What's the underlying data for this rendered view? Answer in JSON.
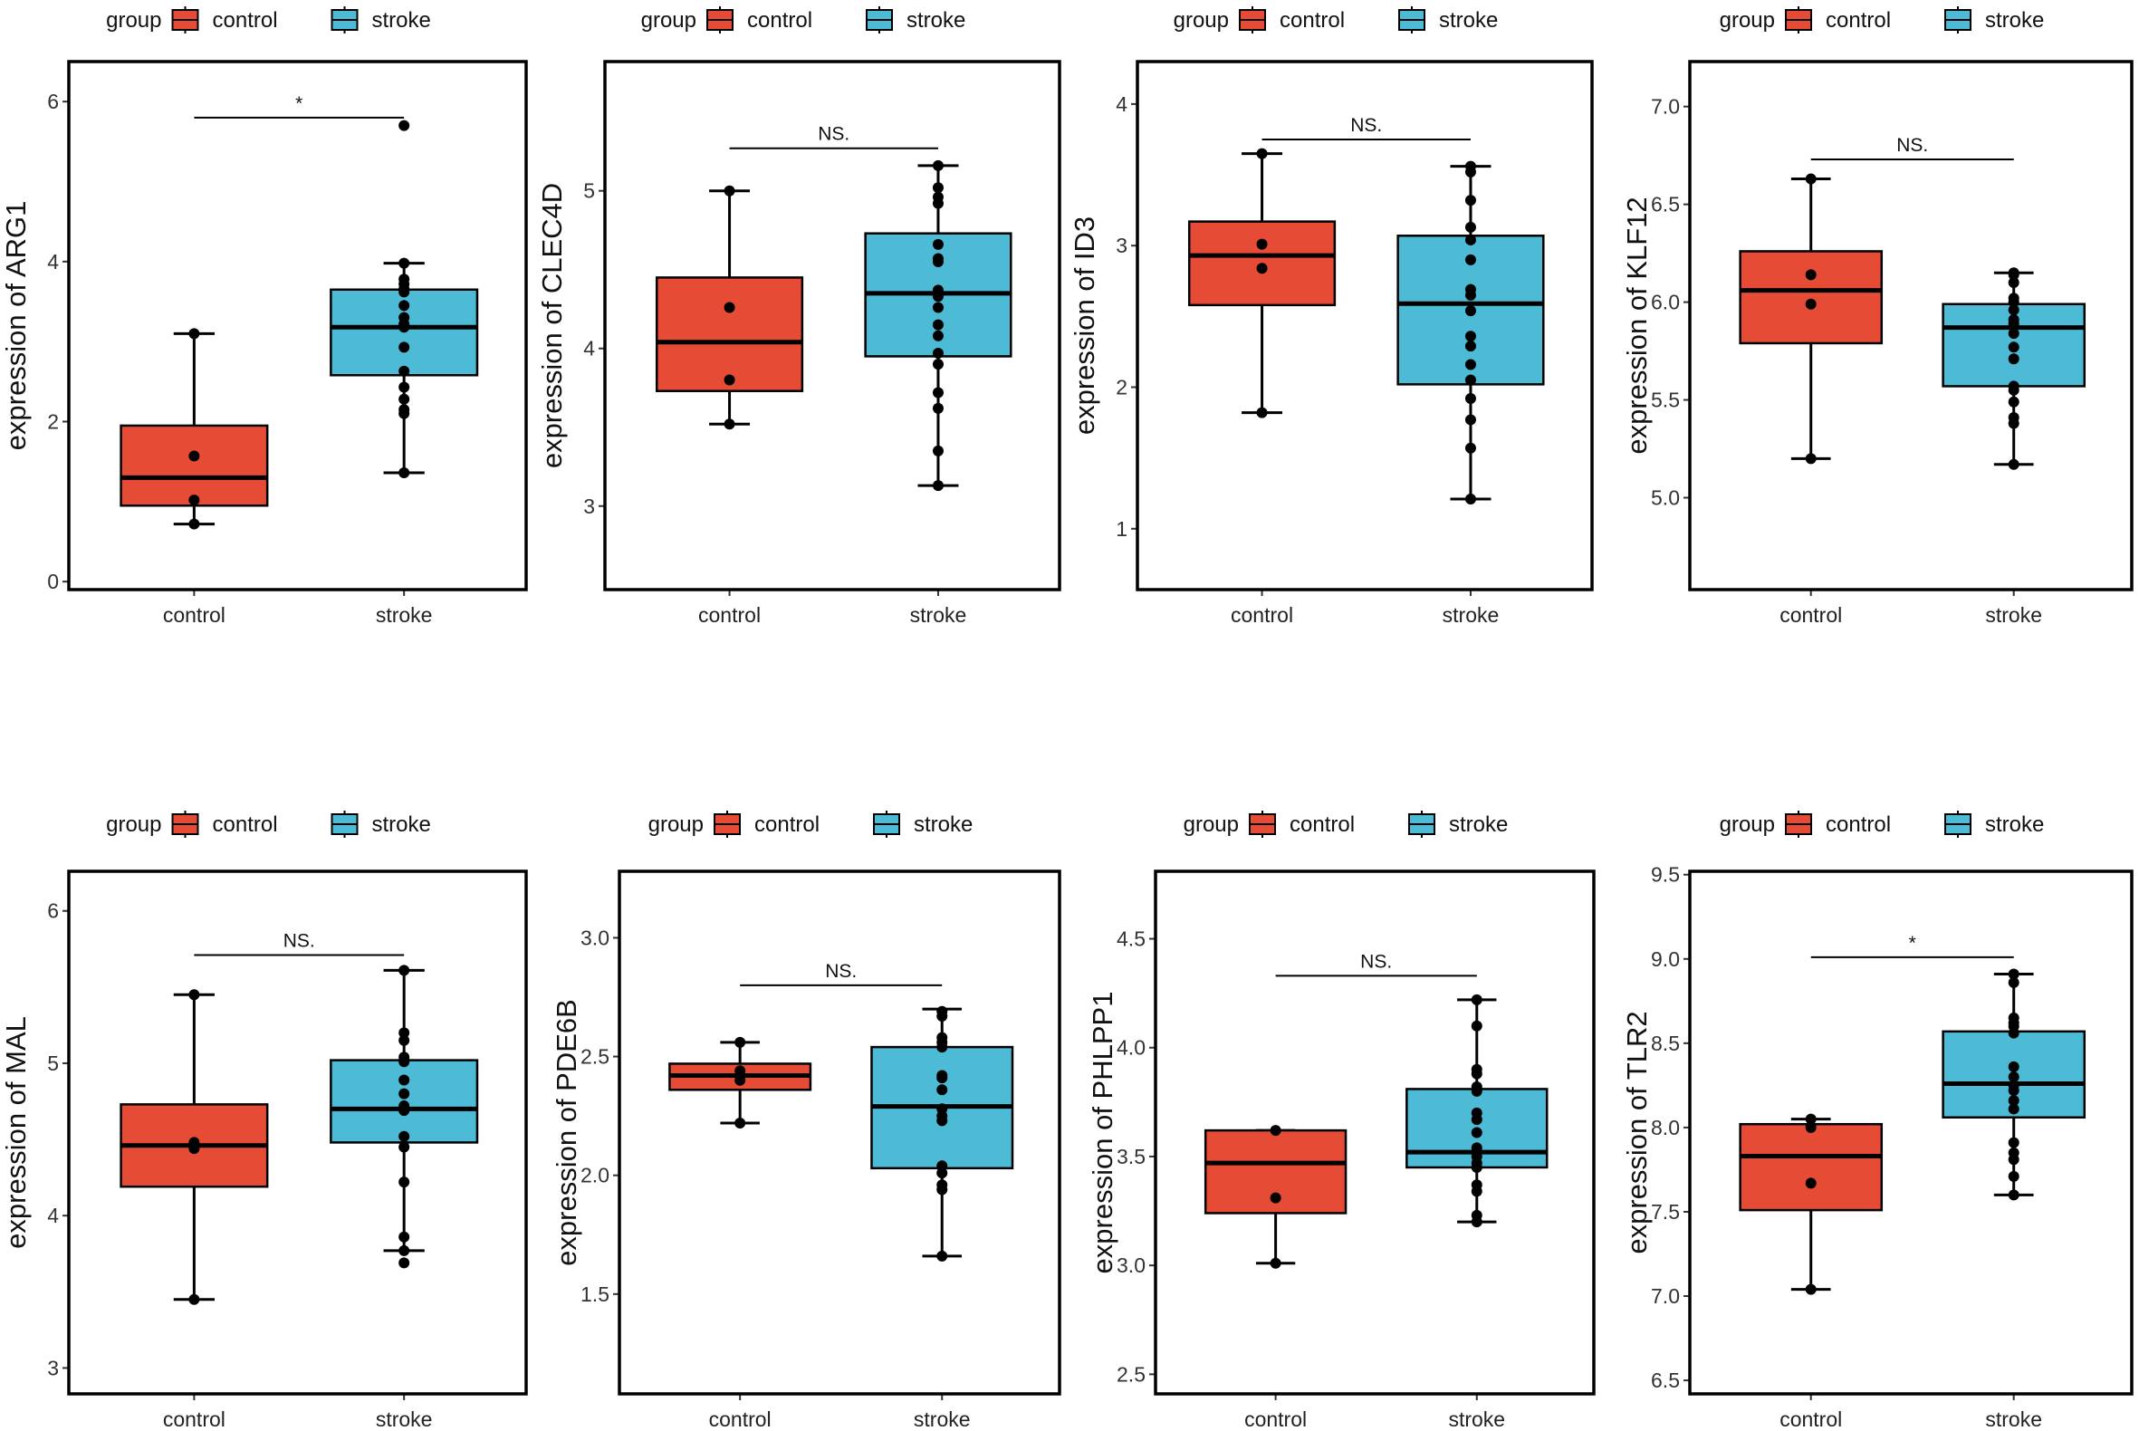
{
  "colors": {
    "control": "#E64B35",
    "stroke": "#4DBBD5",
    "outline": "#000000"
  },
  "legend": {
    "title": "group",
    "items": [
      "control",
      "stroke"
    ]
  },
  "chart_data": [
    {
      "type": "box",
      "gene": "ARG1",
      "ylabel": "expression of ARG1",
      "categories": [
        "control",
        "stroke"
      ],
      "ylim": [
        -0.1,
        6.5
      ],
      "yticks": [
        0,
        2,
        4,
        6
      ],
      "ytick_labels": [
        "0",
        "2",
        "4",
        "6"
      ],
      "significance": {
        "label": "*",
        "y": 5.8
      },
      "series": [
        {
          "name": "control",
          "min": 0.72,
          "q1": 0.95,
          "median": 1.3,
          "q3": 1.95,
          "max": 3.1,
          "outliers": [],
          "points": [
            0.72,
            1.02,
            1.57,
            3.1
          ]
        },
        {
          "name": "stroke",
          "min": 1.36,
          "q1": 2.58,
          "median": 3.18,
          "q3": 3.65,
          "max": 3.98,
          "outliers": [
            5.7
          ],
          "points": [
            1.36,
            2.1,
            2.15,
            2.28,
            2.43,
            2.63,
            2.93,
            3.18,
            3.22,
            3.3,
            3.45,
            3.62,
            3.66,
            3.72,
            3.78,
            3.98,
            5.7
          ]
        }
      ]
    },
    {
      "type": "box",
      "gene": "CLEC4D",
      "ylabel": "expression of CLEC4D",
      "categories": [
        "control",
        "stroke"
      ],
      "ylim": [
        2.47,
        5.82
      ],
      "yticks": [
        3,
        4,
        5
      ],
      "ytick_labels": [
        "3",
        "4",
        "5"
      ],
      "significance": {
        "label": "NS.",
        "y": 5.27
      },
      "series": [
        {
          "name": "control",
          "min": 3.52,
          "q1": 3.73,
          "median": 4.04,
          "q3": 4.45,
          "max": 5.0,
          "outliers": [],
          "points": [
            3.52,
            3.8,
            4.26,
            5.0
          ]
        },
        {
          "name": "stroke",
          "min": 3.13,
          "q1": 3.95,
          "median": 4.35,
          "q3": 4.73,
          "max": 5.16,
          "outliers": [],
          "points": [
            3.13,
            3.35,
            3.62,
            3.72,
            3.9,
            3.97,
            4.08,
            4.15,
            4.26,
            4.33,
            4.37,
            4.55,
            4.57,
            4.66,
            4.92,
            4.96,
            5.02,
            5.16
          ]
        }
      ]
    },
    {
      "type": "box",
      "gene": "ID3",
      "ylabel": "expression of ID3",
      "categories": [
        "control",
        "stroke"
      ],
      "ylim": [
        0.57,
        4.3
      ],
      "yticks": [
        1,
        2,
        3,
        4
      ],
      "ytick_labels": [
        "1",
        "2",
        "3",
        "4"
      ],
      "significance": {
        "label": "NS.",
        "y": 3.75
      },
      "series": [
        {
          "name": "control",
          "min": 1.82,
          "q1": 2.58,
          "median": 2.93,
          "q3": 3.17,
          "max": 3.65,
          "outliers": [],
          "points": [
            1.82,
            2.84,
            3.01,
            3.65
          ]
        },
        {
          "name": "stroke",
          "min": 1.21,
          "q1": 2.02,
          "median": 2.59,
          "q3": 3.07,
          "max": 3.56,
          "outliers": [],
          "points": [
            1.21,
            1.57,
            1.77,
            1.92,
            2.05,
            2.16,
            2.29,
            2.36,
            2.54,
            2.65,
            2.69,
            2.9,
            3.04,
            3.13,
            3.32,
            3.52,
            3.56
          ]
        }
      ]
    },
    {
      "type": "box",
      "gene": "KLF12",
      "ylabel": "expression of KLF12",
      "categories": [
        "control",
        "stroke"
      ],
      "ylim": [
        4.53,
        7.23
      ],
      "yticks": [
        5.0,
        5.5,
        6.0,
        6.5,
        7.0
      ],
      "ytick_labels": [
        "5.0",
        "5.5",
        "6.0",
        "6.5",
        "7.0"
      ],
      "significance": {
        "label": "NS.",
        "y": 6.73
      },
      "series": [
        {
          "name": "control",
          "min": 5.2,
          "q1": 5.79,
          "median": 6.06,
          "q3": 6.26,
          "max": 6.63,
          "outliers": [],
          "points": [
            5.2,
            5.99,
            6.14,
            6.63
          ]
        },
        {
          "name": "stroke",
          "min": 5.17,
          "q1": 5.57,
          "median": 5.87,
          "q3": 5.99,
          "max": 6.15,
          "outliers": [],
          "points": [
            5.17,
            5.38,
            5.41,
            5.49,
            5.55,
            5.57,
            5.71,
            5.77,
            5.84,
            5.89,
            5.91,
            5.96,
            6.0,
            6.02,
            6.1,
            6.14,
            6.15
          ]
        }
      ]
    },
    {
      "type": "box",
      "gene": "MAL",
      "ylabel": "expression of MAL",
      "categories": [
        "control",
        "stroke"
      ],
      "ylim": [
        2.83,
        6.26
      ],
      "yticks": [
        3,
        4,
        5,
        6
      ],
      "ytick_labels": [
        "3",
        "4",
        "5",
        "6"
      ],
      "significance": {
        "label": "NS.",
        "y": 5.71
      },
      "series": [
        {
          "name": "control",
          "min": 3.45,
          "q1": 4.19,
          "median": 4.46,
          "q3": 4.73,
          "max": 5.45,
          "outliers": [],
          "points": [
            3.45,
            4.44,
            4.48,
            5.45
          ]
        },
        {
          "name": "stroke",
          "min": 3.77,
          "q1": 4.48,
          "median": 4.7,
          "q3": 5.02,
          "max": 5.61,
          "outliers": [
            3.69
          ],
          "points": [
            3.69,
            3.77,
            3.86,
            4.22,
            4.45,
            4.52,
            4.69,
            4.72,
            4.8,
            4.89,
            5.01,
            5.04,
            5.15,
            5.2,
            5.61
          ]
        }
      ]
    },
    {
      "type": "box",
      "gene": "PDE6B",
      "ylabel": "expression of PDE6B",
      "categories": [
        "control",
        "stroke"
      ],
      "ylim": [
        1.08,
        3.28
      ],
      "yticks": [
        1.5,
        2.0,
        2.5,
        3.0
      ],
      "ytick_labels": [
        "1.5",
        "2.0",
        "2.5",
        "3.0"
      ],
      "significance": {
        "label": "NS.",
        "y": 2.8
      },
      "series": [
        {
          "name": "control",
          "min": 2.22,
          "q1": 2.36,
          "median": 2.42,
          "q3": 2.47,
          "max": 2.56,
          "outliers": [],
          "points": [
            2.22,
            2.4,
            2.42,
            2.44,
            2.56
          ]
        },
        {
          "name": "stroke",
          "min": 1.66,
          "q1": 2.03,
          "median": 2.29,
          "q3": 2.54,
          "max": 2.7,
          "outliers": [],
          "points": [
            1.66,
            1.94,
            1.96,
            2.01,
            2.04,
            2.23,
            2.25,
            2.28,
            2.36,
            2.41,
            2.42,
            2.54,
            2.56,
            2.58,
            2.67,
            2.69
          ]
        }
      ]
    },
    {
      "type": "box",
      "gene": "PHLPP1",
      "ylabel": "expression of PHLPP1",
      "categories": [
        "control",
        "stroke"
      ],
      "ylim": [
        2.41,
        4.81
      ],
      "yticks": [
        2.5,
        3.0,
        3.5,
        4.0,
        4.5
      ],
      "ytick_labels": [
        "2.5",
        "3.0",
        "3.5",
        "4.0",
        "4.5"
      ],
      "significance": {
        "label": "NS.",
        "y": 4.33
      },
      "series": [
        {
          "name": "control",
          "min": 3.01,
          "q1": 3.24,
          "median": 3.47,
          "q3": 3.62,
          "max": 3.62,
          "outliers": [],
          "points": [
            3.01,
            3.31,
            3.62
          ]
        },
        {
          "name": "stroke",
          "min": 3.2,
          "q1": 3.45,
          "median": 3.52,
          "q3": 3.81,
          "max": 4.22,
          "outliers": [],
          "points": [
            3.2,
            3.23,
            3.34,
            3.37,
            3.45,
            3.47,
            3.5,
            3.54,
            3.61,
            3.67,
            3.7,
            3.8,
            3.82,
            3.88,
            3.9,
            4.1,
            4.22
          ]
        }
      ]
    },
    {
      "type": "box",
      "gene": "TLR2",
      "ylabel": "expression of TLR2",
      "categories": [
        "control",
        "stroke"
      ],
      "ylim": [
        6.42,
        9.52
      ],
      "yticks": [
        6.5,
        7.0,
        7.5,
        8.0,
        8.5,
        9.0,
        9.5
      ],
      "ytick_labels": [
        "6.5",
        "7.0",
        "7.5",
        "8.0",
        "8.5",
        "9.0",
        "9.5"
      ],
      "significance": {
        "label": "*",
        "y": 9.01
      },
      "series": [
        {
          "name": "control",
          "min": 7.04,
          "q1": 7.51,
          "median": 7.83,
          "q3": 8.02,
          "max": 8.05,
          "outliers": [],
          "points": [
            7.04,
            7.67,
            8.0,
            8.05
          ]
        },
        {
          "name": "stroke",
          "min": 7.6,
          "q1": 8.06,
          "median": 8.26,
          "q3": 8.57,
          "max": 8.91,
          "outliers": [],
          "points": [
            7.6,
            7.71,
            7.81,
            7.85,
            7.91,
            8.11,
            8.16,
            8.22,
            8.25,
            8.3,
            8.36,
            8.56,
            8.6,
            8.62,
            8.65,
            8.86,
            8.91
          ]
        }
      ]
    }
  ]
}
